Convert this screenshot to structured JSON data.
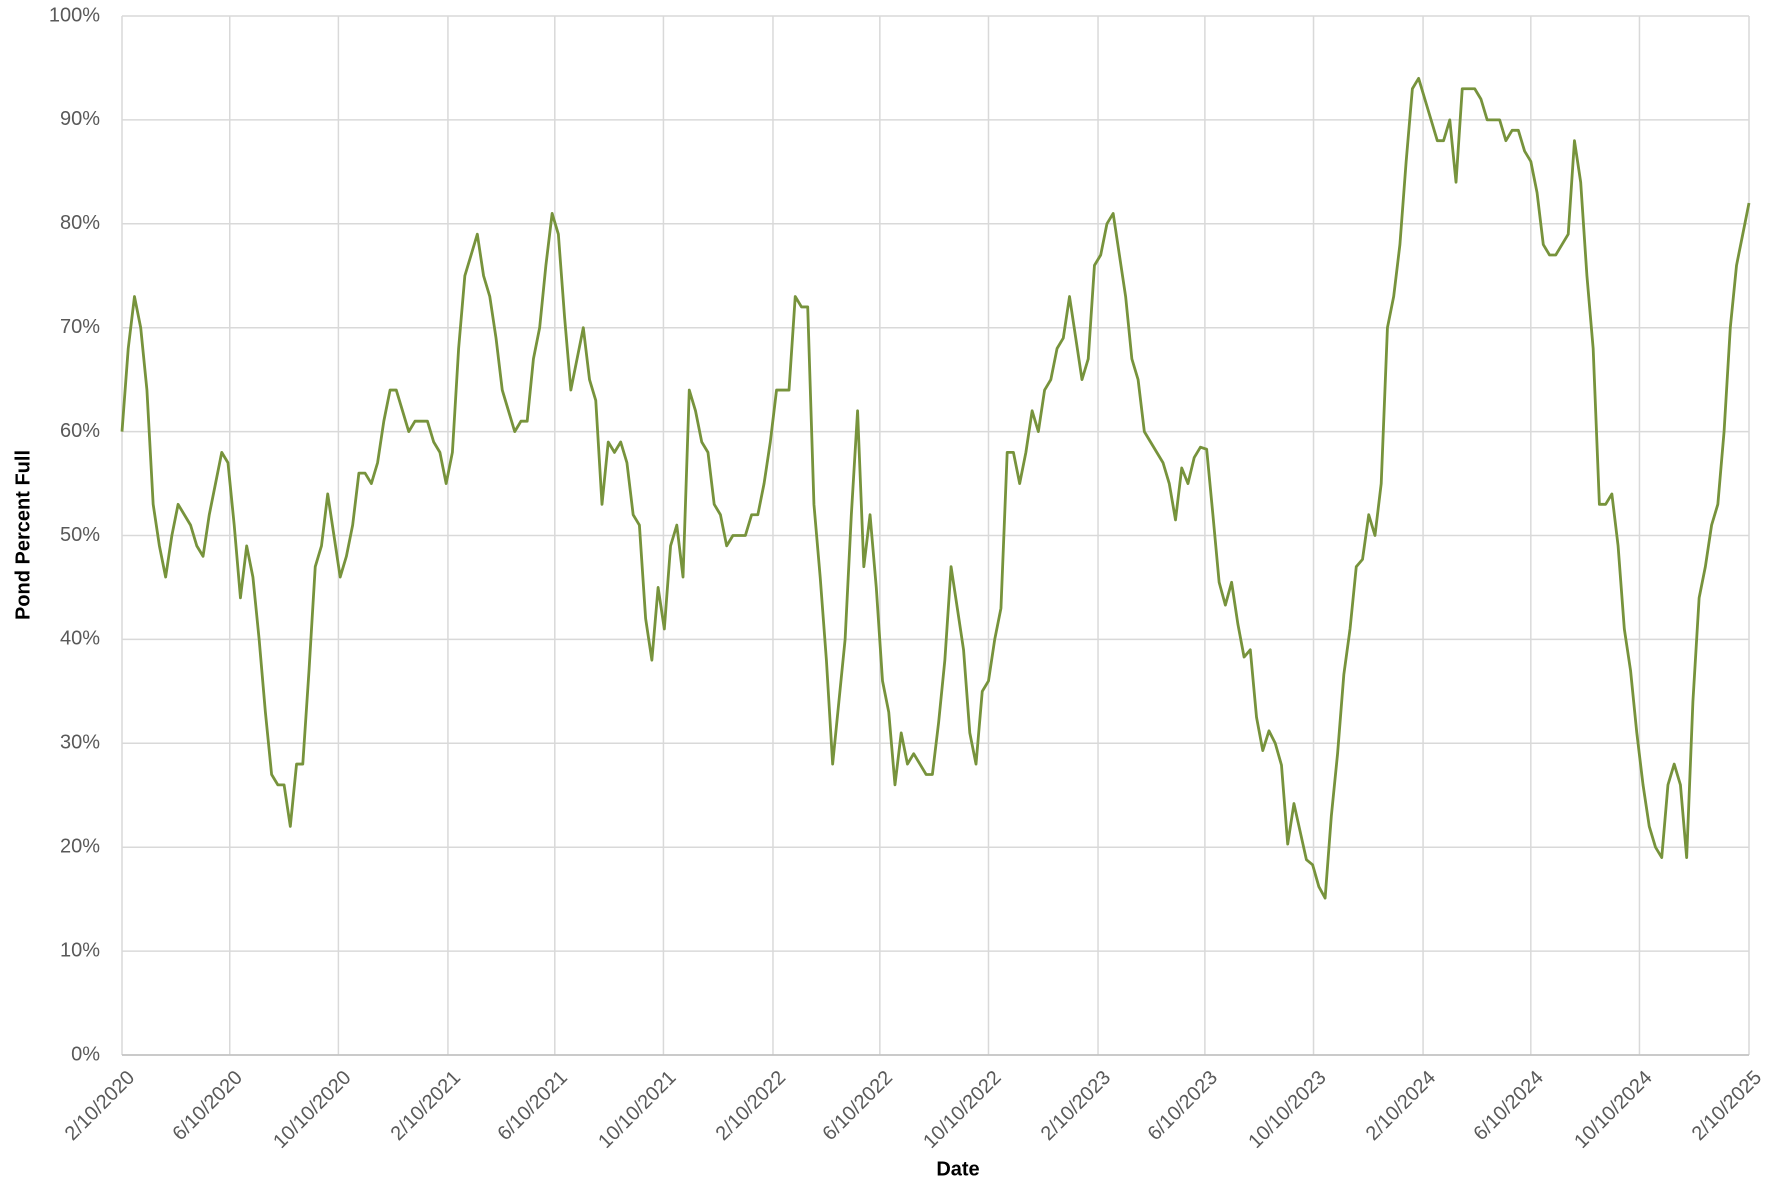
{
  "chart_data": {
    "type": "line",
    "x_label": "Date",
    "y_label": "Pond Percent Full",
    "color": "#77933c",
    "grid": true,
    "xlim": [
      "2/10/2020",
      "2/10/2025"
    ],
    "xticks": [
      "2/10/2020",
      "6/10/2020",
      "10/10/2020",
      "2/10/2021",
      "6/10/2021",
      "10/10/2021",
      "2/10/2022",
      "6/10/2022",
      "10/10/2022",
      "2/10/2023",
      "6/10/2023",
      "10/10/2023",
      "2/10/2024",
      "6/10/2024",
      "10/10/2024",
      "2/10/2025"
    ],
    "ylim": [
      0,
      100
    ],
    "yticks": [
      {
        "value": 0,
        "label": "0%"
      },
      {
        "value": 10,
        "label": "10%"
      },
      {
        "value": 20,
        "label": "20%"
      },
      {
        "value": 30,
        "label": "30%"
      },
      {
        "value": 40,
        "label": "40%"
      },
      {
        "value": 50,
        "label": "50%"
      },
      {
        "value": 60,
        "label": "60%"
      },
      {
        "value": 70,
        "label": "70%"
      },
      {
        "value": 80,
        "label": "80%"
      },
      {
        "value": 90,
        "label": "90%"
      },
      {
        "value": 100,
        "label": "100%"
      }
    ],
    "x": [
      "2/10/2020",
      "2/17/2020",
      "2/24/2020",
      "3/2/2020",
      "3/9/2020",
      "3/16/2020",
      "3/23/2020",
      "3/30/2020",
      "4/6/2020",
      "4/13/2020",
      "4/20/2020",
      "4/27/2020",
      "5/4/2020",
      "5/11/2020",
      "5/18/2020",
      "5/25/2020",
      "6/1/2020",
      "6/8/2020",
      "6/15/2020",
      "6/22/2020",
      "6/29/2020",
      "7/6/2020",
      "7/13/2020",
      "7/20/2020",
      "7/27/2020",
      "8/3/2020",
      "8/10/2020",
      "8/17/2020",
      "8/24/2020",
      "8/31/2020",
      "9/7/2020",
      "9/14/2020",
      "9/21/2020",
      "9/28/2020",
      "10/5/2020",
      "10/12/2020",
      "10/19/2020",
      "10/26/2020",
      "11/2/2020",
      "11/9/2020",
      "11/16/2020",
      "11/23/2020",
      "11/30/2020",
      "12/7/2020",
      "12/14/2020",
      "12/21/2020",
      "12/28/2020",
      "1/4/2021",
      "1/11/2021",
      "1/18/2021",
      "1/25/2021",
      "2/1/2021",
      "2/8/2021",
      "2/15/2021",
      "2/22/2021",
      "3/1/2021",
      "3/8/2021",
      "3/15/2021",
      "3/22/2021",
      "3/29/2021",
      "4/5/2021",
      "4/12/2021",
      "4/19/2021",
      "4/26/2021",
      "5/3/2021",
      "5/10/2021",
      "5/17/2021",
      "5/24/2021",
      "5/31/2021",
      "6/7/2021",
      "6/14/2021",
      "6/21/2021",
      "6/28/2021",
      "7/5/2021",
      "7/12/2021",
      "7/19/2021",
      "7/26/2021",
      "8/2/2021",
      "8/9/2021",
      "8/16/2021",
      "8/23/2021",
      "8/30/2021",
      "9/6/2021",
      "9/13/2021",
      "9/20/2021",
      "9/27/2021",
      "10/4/2021",
      "10/11/2021",
      "10/18/2021",
      "10/25/2021",
      "11/1/2021",
      "11/8/2021",
      "11/15/2021",
      "11/22/2021",
      "11/29/2021",
      "12/6/2021",
      "12/13/2021",
      "12/20/2021",
      "12/27/2021",
      "1/3/2022",
      "1/10/2022",
      "1/17/2022",
      "1/24/2022",
      "1/31/2022",
      "2/7/2022",
      "2/14/2022",
      "2/21/2022",
      "2/28/2022",
      "3/7/2022",
      "3/14/2022",
      "3/21/2022",
      "3/28/2022",
      "4/4/2022",
      "4/11/2022",
      "4/18/2022",
      "4/25/2022",
      "5/2/2022",
      "5/9/2022",
      "5/16/2022",
      "5/23/2022",
      "5/30/2022",
      "6/6/2022",
      "6/13/2022",
      "6/20/2022",
      "6/27/2022",
      "7/4/2022",
      "7/11/2022",
      "7/18/2022",
      "7/25/2022",
      "8/1/2022",
      "8/8/2022",
      "8/15/2022",
      "8/22/2022",
      "8/29/2022",
      "9/5/2022",
      "9/12/2022",
      "9/19/2022",
      "9/26/2022",
      "10/3/2022",
      "10/10/2022",
      "10/17/2022",
      "10/24/2022",
      "10/31/2022",
      "11/7/2022",
      "11/14/2022",
      "11/21/2022",
      "11/28/2022",
      "12/5/2022",
      "12/12/2022",
      "12/19/2022",
      "12/26/2022",
      "1/2/2023",
      "1/9/2023",
      "1/16/2023",
      "1/23/2023",
      "1/30/2023",
      "2/6/2023",
      "2/13/2023",
      "2/20/2023",
      "2/27/2023",
      "3/6/2023",
      "3/13/2023",
      "3/20/2023",
      "3/27/2023",
      "4/3/2023",
      "4/10/2023",
      "4/17/2023",
      "4/24/2023",
      "5/1/2023",
      "5/8/2023",
      "5/15/2023",
      "5/22/2023",
      "5/29/2023",
      "6/5/2023",
      "6/12/2023",
      "6/19/2023",
      "6/26/2023",
      "7/3/2023",
      "7/10/2023",
      "7/17/2023",
      "7/24/2023",
      "7/31/2023",
      "8/7/2023",
      "8/14/2023",
      "8/21/2023",
      "8/28/2023",
      "9/4/2023",
      "9/11/2023",
      "9/18/2023",
      "9/25/2023",
      "10/2/2023",
      "10/9/2023",
      "10/16/2023",
      "10/23/2023",
      "10/30/2023",
      "11/6/2023",
      "11/13/2023",
      "11/20/2023",
      "11/27/2023",
      "12/4/2023",
      "12/11/2023",
      "12/18/2023",
      "12/25/2023",
      "1/1/2024",
      "1/8/2024",
      "1/15/2024",
      "1/22/2024",
      "1/29/2024",
      "2/5/2024",
      "2/12/2024",
      "2/19/2024",
      "2/26/2024",
      "3/4/2024",
      "3/11/2024",
      "3/18/2024",
      "3/25/2024",
      "4/1/2024",
      "4/8/2024",
      "4/15/2024",
      "4/22/2024",
      "4/29/2024",
      "5/6/2024",
      "5/13/2024",
      "5/20/2024",
      "5/27/2024",
      "6/3/2024",
      "6/10/2024",
      "6/17/2024",
      "6/24/2024",
      "7/1/2024",
      "7/8/2024",
      "7/15/2024",
      "7/22/2024",
      "7/29/2024",
      "8/5/2024",
      "8/12/2024",
      "8/19/2024",
      "8/26/2024",
      "9/2/2024",
      "9/9/2024",
      "9/16/2024",
      "9/23/2024",
      "9/30/2024",
      "10/7/2024",
      "10/14/2024",
      "10/21/2024",
      "10/28/2024",
      "11/4/2024",
      "11/11/2024",
      "11/18/2024",
      "11/25/2024",
      "12/2/2024",
      "12/9/2024",
      "12/16/2024",
      "12/23/2024",
      "12/30/2024",
      "1/6/2025",
      "1/13/2025",
      "1/20/2025",
      "1/27/2025",
      "2/3/2025",
      "2/10/2025"
    ],
    "values": [
      60,
      68,
      73,
      70,
      64,
      53,
      49,
      46,
      50,
      53,
      52,
      51,
      49,
      48,
      52,
      55,
      58,
      57,
      51,
      44,
      49,
      46,
      40,
      33,
      27,
      26,
      26,
      22,
      28,
      28,
      37,
      47,
      49,
      54,
      50,
      46,
      48,
      51,
      56,
      56,
      55,
      57,
      61,
      64,
      64,
      62,
      60,
      61,
      61,
      61,
      59,
      58,
      55,
      58,
      68,
      75,
      77,
      79,
      75,
      73,
      69,
      64,
      62,
      60,
      61,
      61,
      67,
      70,
      76,
      81,
      79,
      71,
      64,
      67,
      70,
      65,
      63,
      53,
      59,
      58,
      59,
      57,
      52,
      51,
      42,
      38,
      45,
      41,
      49,
      51,
      46,
      64,
      62,
      59,
      58,
      53,
      52,
      49,
      50,
      50,
      50,
      52,
      52,
      55,
      59,
      64,
      64,
      64,
      73,
      72,
      72,
      53,
      46,
      38,
      28,
      34,
      40,
      52,
      62,
      47,
      52,
      45,
      36,
      33,
      26,
      31,
      28,
      29,
      28,
      27,
      27,
      32,
      38,
      47,
      43,
      39,
      31,
      28,
      35,
      36,
      40,
      43,
      58,
      58,
      55,
      58,
      62,
      60,
      64,
      65,
      68,
      69,
      73,
      69,
      65,
      67,
      76,
      77,
      80,
      81,
      77,
      73,
      67,
      65,
      60,
      59,
      58,
      57,
      55,
      51.5,
      56.5,
      55,
      57.5,
      58.5,
      58.3,
      52,
      45.5,
      43.3,
      45.5,
      41.5,
      38.3,
      39,
      32.5,
      29.3,
      31.2,
      30,
      27.9,
      20.3,
      24.2,
      21.5,
      18.8,
      18.3,
      16.2,
      15.1,
      23,
      29,
      36.6,
      41,
      47,
      47.7,
      52,
      50,
      55,
      70,
      73,
      78,
      86,
      93,
      94,
      92,
      90,
      88,
      88,
      90,
      84,
      93,
      93,
      93,
      92,
      90,
      90,
      90,
      88,
      89,
      89,
      87,
      86,
      83,
      78,
      77,
      77,
      78,
      79,
      88,
      84,
      75,
      68,
      53,
      53,
      54,
      49,
      41,
      37,
      31,
      26,
      22,
      20,
      19,
      26,
      28,
      26,
      19,
      34,
      44,
      47,
      51,
      53,
      60,
      70,
      76,
      79,
      82
    ]
  }
}
